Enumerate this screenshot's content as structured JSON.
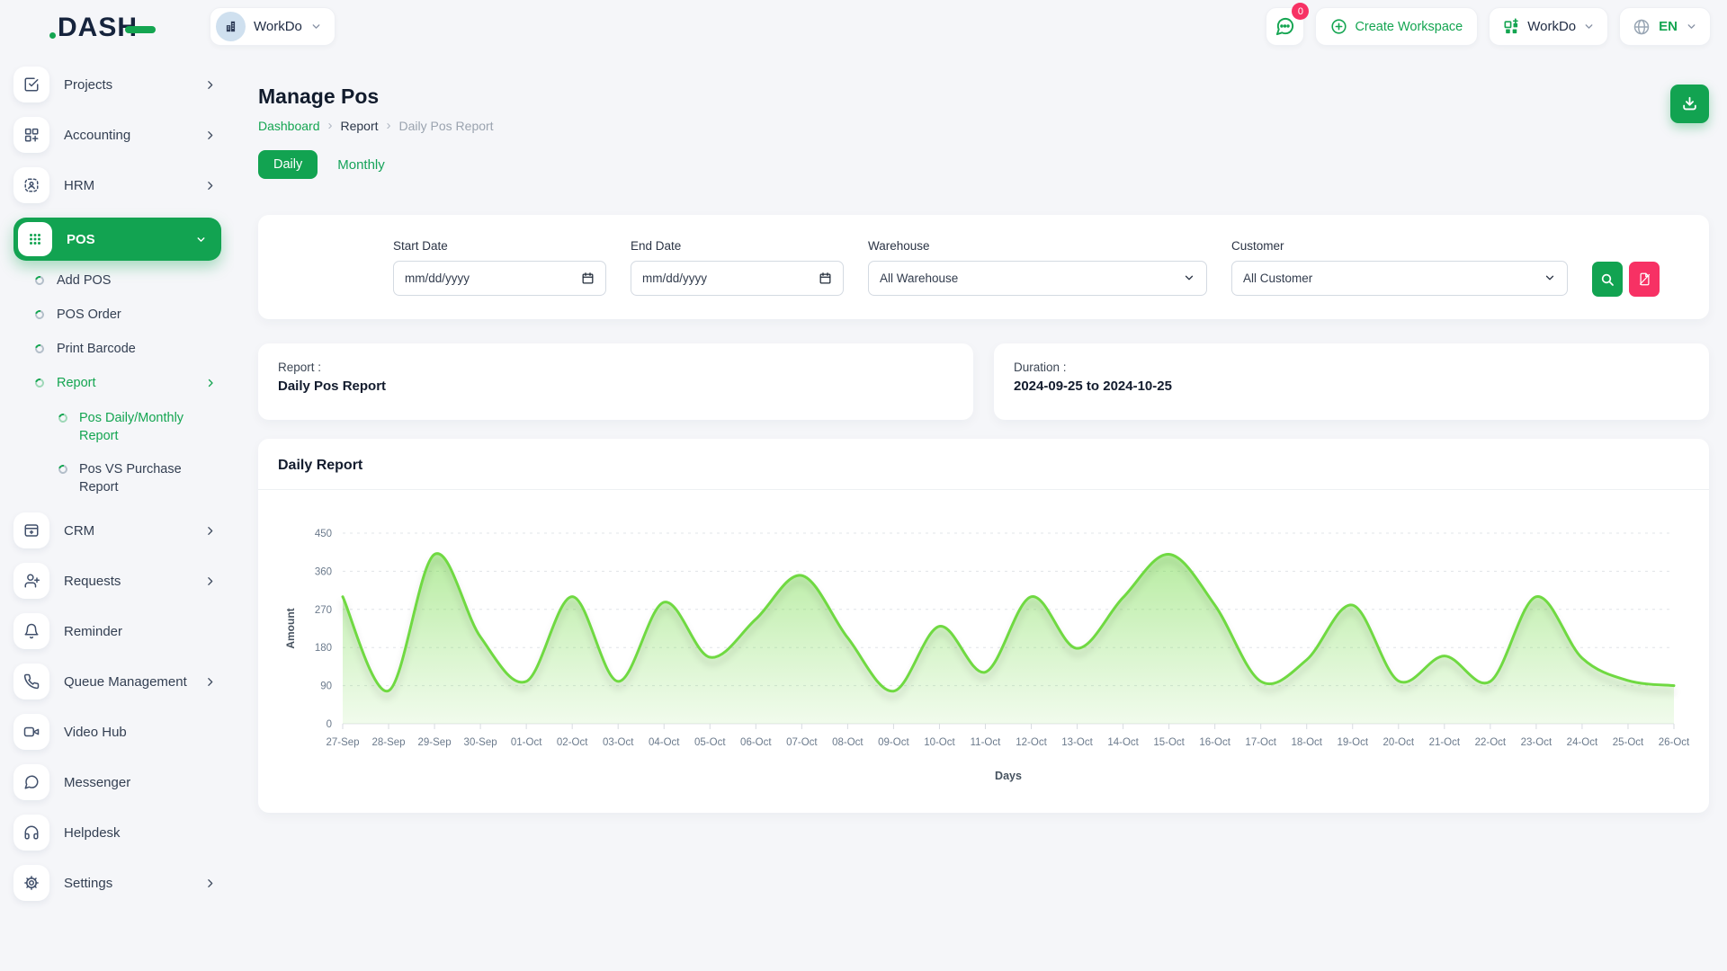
{
  "brand": {
    "logo_text": "DASH"
  },
  "header": {
    "workspace_selector": {
      "label": "WorkDo"
    },
    "notification": {
      "badge": "0"
    },
    "create_workspace_label": "Create Workspace",
    "account_menu_label": "WorkDo",
    "language": "EN"
  },
  "sidebar": {
    "items": [
      {
        "label": "Projects"
      },
      {
        "label": "Accounting"
      },
      {
        "label": "HRM"
      },
      {
        "label": "POS"
      },
      {
        "label": "CRM"
      },
      {
        "label": "Requests"
      },
      {
        "label": "Reminder"
      },
      {
        "label": "Queue Management"
      },
      {
        "label": "Video Hub"
      },
      {
        "label": "Messenger"
      },
      {
        "label": "Helpdesk"
      },
      {
        "label": "Settings"
      }
    ],
    "pos_submenu": [
      {
        "label": "Add POS"
      },
      {
        "label": "POS Order"
      },
      {
        "label": "Print Barcode"
      },
      {
        "label": "Report"
      }
    ],
    "report_submenu": [
      {
        "label": "Pos Daily/Monthly Report"
      },
      {
        "label": "Pos VS Purchase Report"
      }
    ]
  },
  "page": {
    "title": "Manage Pos",
    "breadcrumb": [
      "Dashboard",
      "Report",
      "Daily Pos Report"
    ]
  },
  "tabs": {
    "daily": "Daily",
    "monthly": "Monthly"
  },
  "filters": {
    "start_date_label": "Start Date",
    "end_date_label": "End Date",
    "date_placeholder": "mm/dd/yyyy",
    "warehouse_label": "Warehouse",
    "warehouse_value": "All Warehouse",
    "customer_label": "Customer",
    "customer_value": "All Customer"
  },
  "report_card": {
    "label": "Report :",
    "value": "Daily Pos Report"
  },
  "duration_card": {
    "label": "Duration :",
    "value": "2024-09-25 to 2024-10-25"
  },
  "chart_section": {
    "title": "Daily Report"
  },
  "chart_data": {
    "type": "area",
    "title": "Daily Report",
    "x": [
      "27-Sep",
      "28-Sep",
      "29-Sep",
      "30-Sep",
      "01-Oct",
      "02-Oct",
      "03-Oct",
      "04-Oct",
      "05-Oct",
      "06-Oct",
      "07-Oct",
      "08-Oct",
      "09-Oct",
      "10-Oct",
      "11-Oct",
      "12-Oct",
      "13-Oct",
      "14-Oct",
      "15-Oct",
      "16-Oct",
      "17-Oct",
      "18-Oct",
      "19-Oct",
      "20-Oct",
      "21-Oct",
      "22-Oct",
      "23-Oct",
      "24-Oct",
      "25-Oct",
      "26-Oct"
    ],
    "series": [
      {
        "name": "Amount",
        "values": [
          300,
          78,
          400,
          205,
          100,
          300,
          100,
          287,
          157,
          247,
          350,
          203,
          77,
          230,
          122,
          300,
          178,
          298,
          400,
          280,
          100,
          151,
          280,
          101,
          160,
          100,
          300,
          155,
          102,
          90
        ]
      }
    ],
    "xlabel": "Days",
    "ylabel": "Amount",
    "ylim": [
      0,
      450
    ],
    "yticks": [
      0,
      90,
      180,
      270,
      360,
      450
    ],
    "grid": "dashed-horizontal",
    "legend": "none",
    "curve": "smooth"
  },
  "icons": {
    "notification": "chat-bubble-icon",
    "create_workspace": "plus-circle-icon",
    "account": "grid-plus-icon",
    "language": "globe-icon",
    "export": "download-icon",
    "search": "search-icon",
    "reset": "file-slash-icon",
    "date": "calendar-icon"
  },
  "colors": {
    "primary_green": "#12a351",
    "chart_line": "#6fd943",
    "pink": "#f73164",
    "grid_line": "#e0e4e8",
    "tick_text": "#6b7a8c"
  }
}
